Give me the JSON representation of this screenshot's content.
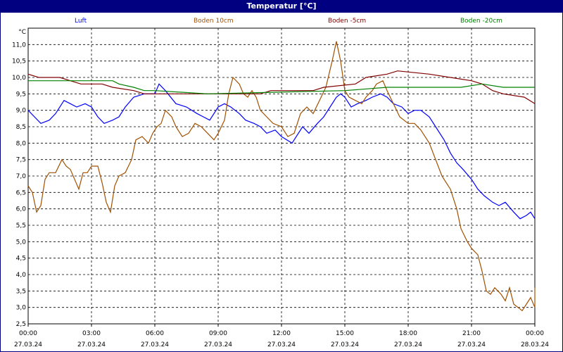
{
  "window": {
    "title": "Temperatur [°C]"
  },
  "colors": {
    "Luft": "#0000ff",
    "Boden 10cm": "#a05000",
    "Boden -5cm": "#800000",
    "Boden -20cm": "#008000"
  },
  "chart_data": {
    "type": "line",
    "title": "Temperatur [°C]",
    "ylabel": "°C",
    "ylim": [
      2.5,
      11.5
    ],
    "xlim": [
      0,
      24
    ],
    "grid": true,
    "legend_position": "top",
    "yticks": [
      "11,0",
      "10,5",
      "10,0",
      "9,5",
      "9,0",
      "8,5",
      "8,0",
      "7,5",
      "7,0",
      "6,5",
      "6,0",
      "5,5",
      "5,0",
      "4,5",
      "4,0",
      "3,5",
      "3,0",
      "2,5"
    ],
    "xticks": [
      {
        "t": "00:00",
        "d": "27.03.24"
      },
      {
        "t": "03:00",
        "d": "27.03.24"
      },
      {
        "t": "06:00",
        "d": "27.03.24"
      },
      {
        "t": "09:00",
        "d": "27.03.24"
      },
      {
        "t": "12:00",
        "d": "27.03.24"
      },
      {
        "t": "15:00",
        "d": "27.03.24"
      },
      {
        "t": "18:00",
        "d": "27.03.24"
      },
      {
        "t": "21:00",
        "d": "27.03.24"
      },
      {
        "t": "00:00",
        "d": "28.03.24"
      }
    ],
    "series": [
      {
        "name": "Luft",
        "color": "#0000ff",
        "points": [
          [
            0,
            9.0
          ],
          [
            0.3,
            8.8
          ],
          [
            0.6,
            8.6
          ],
          [
            1.0,
            8.7
          ],
          [
            1.3,
            8.9
          ],
          [
            1.7,
            9.3
          ],
          [
            2.0,
            9.2
          ],
          [
            2.3,
            9.1
          ],
          [
            2.7,
            9.2
          ],
          [
            3.0,
            9.1
          ],
          [
            3.3,
            8.8
          ],
          [
            3.6,
            8.6
          ],
          [
            4.0,
            8.7
          ],
          [
            4.3,
            8.8
          ],
          [
            4.6,
            9.1
          ],
          [
            5.0,
            9.4
          ],
          [
            5.5,
            9.5
          ],
          [
            6.0,
            9.5
          ],
          [
            6.2,
            9.8
          ],
          [
            6.5,
            9.6
          ],
          [
            7.0,
            9.2
          ],
          [
            7.5,
            9.1
          ],
          [
            8.0,
            8.9
          ],
          [
            8.3,
            8.8
          ],
          [
            8.6,
            8.7
          ],
          [
            9.0,
            9.1
          ],
          [
            9.3,
            9.2
          ],
          [
            9.6,
            9.1
          ],
          [
            10.0,
            8.9
          ],
          [
            10.3,
            8.7
          ],
          [
            10.7,
            8.6
          ],
          [
            11.0,
            8.5
          ],
          [
            11.3,
            8.3
          ],
          [
            11.7,
            8.4
          ],
          [
            12.0,
            8.2
          ],
          [
            12.5,
            8.0
          ],
          [
            13.0,
            8.5
          ],
          [
            13.3,
            8.3
          ],
          [
            13.7,
            8.6
          ],
          [
            14.0,
            8.8
          ],
          [
            14.3,
            9.1
          ],
          [
            14.6,
            9.4
          ],
          [
            14.8,
            9.5
          ],
          [
            15.0,
            9.4
          ],
          [
            15.3,
            9.1
          ],
          [
            15.6,
            9.2
          ],
          [
            16.0,
            9.3
          ],
          [
            16.3,
            9.4
          ],
          [
            16.7,
            9.5
          ],
          [
            17.0,
            9.4
          ],
          [
            17.3,
            9.2
          ],
          [
            17.7,
            9.1
          ],
          [
            18.0,
            8.9
          ],
          [
            18.3,
            9.0
          ],
          [
            18.6,
            9.0
          ],
          [
            19.0,
            8.8
          ],
          [
            19.3,
            8.5
          ],
          [
            19.7,
            8.1
          ],
          [
            20.0,
            7.7
          ],
          [
            20.3,
            7.4
          ],
          [
            20.6,
            7.2
          ],
          [
            21.0,
            6.9
          ],
          [
            21.3,
            6.6
          ],
          [
            21.6,
            6.4
          ],
          [
            22.0,
            6.2
          ],
          [
            22.3,
            6.1
          ],
          [
            22.6,
            6.2
          ],
          [
            23.0,
            5.9
          ],
          [
            23.3,
            5.7
          ],
          [
            23.6,
            5.8
          ],
          [
            23.8,
            5.9
          ],
          [
            24.0,
            5.7
          ]
        ]
      },
      {
        "name": "Boden 10cm",
        "color": "#a05000",
        "points": [
          [
            0,
            6.7
          ],
          [
            0.2,
            6.5
          ],
          [
            0.4,
            5.9
          ],
          [
            0.6,
            6.1
          ],
          [
            0.8,
            6.9
          ],
          [
            1.0,
            7.1
          ],
          [
            1.3,
            7.1
          ],
          [
            1.6,
            7.5
          ],
          [
            1.8,
            7.3
          ],
          [
            2.0,
            7.2
          ],
          [
            2.2,
            6.9
          ],
          [
            2.4,
            6.6
          ],
          [
            2.6,
            7.1
          ],
          [
            2.8,
            7.1
          ],
          [
            3.0,
            7.3
          ],
          [
            3.3,
            7.3
          ],
          [
            3.5,
            6.8
          ],
          [
            3.7,
            6.2
          ],
          [
            3.9,
            5.9
          ],
          [
            4.1,
            6.7
          ],
          [
            4.3,
            7.0
          ],
          [
            4.6,
            7.1
          ],
          [
            4.9,
            7.5
          ],
          [
            5.1,
            8.1
          ],
          [
            5.4,
            8.2
          ],
          [
            5.7,
            8.0
          ],
          [
            5.9,
            8.3
          ],
          [
            6.1,
            8.5
          ],
          [
            6.3,
            8.6
          ],
          [
            6.5,
            9.0
          ],
          [
            6.8,
            8.8
          ],
          [
            7.0,
            8.5
          ],
          [
            7.3,
            8.2
          ],
          [
            7.6,
            8.3
          ],
          [
            7.9,
            8.6
          ],
          [
            8.2,
            8.5
          ],
          [
            8.5,
            8.3
          ],
          [
            8.8,
            8.1
          ],
          [
            9.0,
            8.3
          ],
          [
            9.3,
            8.7
          ],
          [
            9.5,
            9.5
          ],
          [
            9.7,
            10.0
          ],
          [
            10.0,
            9.8
          ],
          [
            10.2,
            9.5
          ],
          [
            10.4,
            9.4
          ],
          [
            10.6,
            9.6
          ],
          [
            10.8,
            9.4
          ],
          [
            11.0,
            9.0
          ],
          [
            11.3,
            8.8
          ],
          [
            11.6,
            8.6
          ],
          [
            12.0,
            8.5
          ],
          [
            12.3,
            8.2
          ],
          [
            12.6,
            8.3
          ],
          [
            12.9,
            8.9
          ],
          [
            13.2,
            9.1
          ],
          [
            13.5,
            8.9
          ],
          [
            13.8,
            9.3
          ],
          [
            14.1,
            9.7
          ],
          [
            14.4,
            10.5
          ],
          [
            14.6,
            11.1
          ],
          [
            14.8,
            10.5
          ],
          [
            15.0,
            9.6
          ],
          [
            15.2,
            9.4
          ],
          [
            15.5,
            9.3
          ],
          [
            15.8,
            9.2
          ],
          [
            16.0,
            9.4
          ],
          [
            16.3,
            9.6
          ],
          [
            16.5,
            9.8
          ],
          [
            16.8,
            9.9
          ],
          [
            17.0,
            9.6
          ],
          [
            17.3,
            9.2
          ],
          [
            17.6,
            8.8
          ],
          [
            18.0,
            8.6
          ],
          [
            18.3,
            8.6
          ],
          [
            18.6,
            8.4
          ],
          [
            19.0,
            8.0
          ],
          [
            19.3,
            7.5
          ],
          [
            19.6,
            7.0
          ],
          [
            20.0,
            6.6
          ],
          [
            20.3,
            6.0
          ],
          [
            20.5,
            5.4
          ],
          [
            20.8,
            5.0
          ],
          [
            21.0,
            4.8
          ],
          [
            21.3,
            4.6
          ],
          [
            21.5,
            4.1
          ],
          [
            21.7,
            3.5
          ],
          [
            21.9,
            3.4
          ],
          [
            22.1,
            3.6
          ],
          [
            22.4,
            3.4
          ],
          [
            22.6,
            3.2
          ],
          [
            22.8,
            3.6
          ],
          [
            23.0,
            3.1
          ],
          [
            23.2,
            3.0
          ],
          [
            23.4,
            2.9
          ],
          [
            23.6,
            3.1
          ],
          [
            23.8,
            3.3
          ],
          [
            24.0,
            3.0
          ],
          [
            24.1,
            3.6
          ]
        ]
      },
      {
        "name": "Boden -5cm",
        "color": "#800000",
        "points": [
          [
            0,
            10.1
          ],
          [
            0.5,
            10.0
          ],
          [
            1.5,
            10.0
          ],
          [
            2.0,
            9.9
          ],
          [
            2.5,
            9.8
          ],
          [
            3.5,
            9.8
          ],
          [
            4.0,
            9.7
          ],
          [
            5.0,
            9.6
          ],
          [
            5.5,
            9.5
          ],
          [
            11.0,
            9.5
          ],
          [
            11.5,
            9.6
          ],
          [
            13.5,
            9.6
          ],
          [
            14.0,
            9.7
          ],
          [
            15.5,
            9.8
          ],
          [
            16.0,
            10.0
          ],
          [
            17.0,
            10.1
          ],
          [
            17.5,
            10.2
          ],
          [
            19.0,
            10.1
          ],
          [
            20.0,
            10.0
          ],
          [
            21.0,
            9.9
          ],
          [
            21.5,
            9.8
          ],
          [
            22.0,
            9.6
          ],
          [
            22.5,
            9.5
          ],
          [
            23.5,
            9.4
          ],
          [
            24.0,
            9.2
          ]
        ]
      },
      {
        "name": "Boden -20cm",
        "color": "#008000",
        "points": [
          [
            0,
            9.9
          ],
          [
            4.0,
            9.9
          ],
          [
            4.3,
            9.8
          ],
          [
            5.0,
            9.7
          ],
          [
            5.5,
            9.6
          ],
          [
            6.0,
            9.6
          ],
          [
            8.5,
            9.5
          ],
          [
            15.0,
            9.6
          ],
          [
            17.0,
            9.7
          ],
          [
            20.5,
            9.7
          ],
          [
            21.5,
            9.8
          ],
          [
            22.5,
            9.7
          ],
          [
            24.0,
            9.7
          ]
        ]
      }
    ]
  }
}
